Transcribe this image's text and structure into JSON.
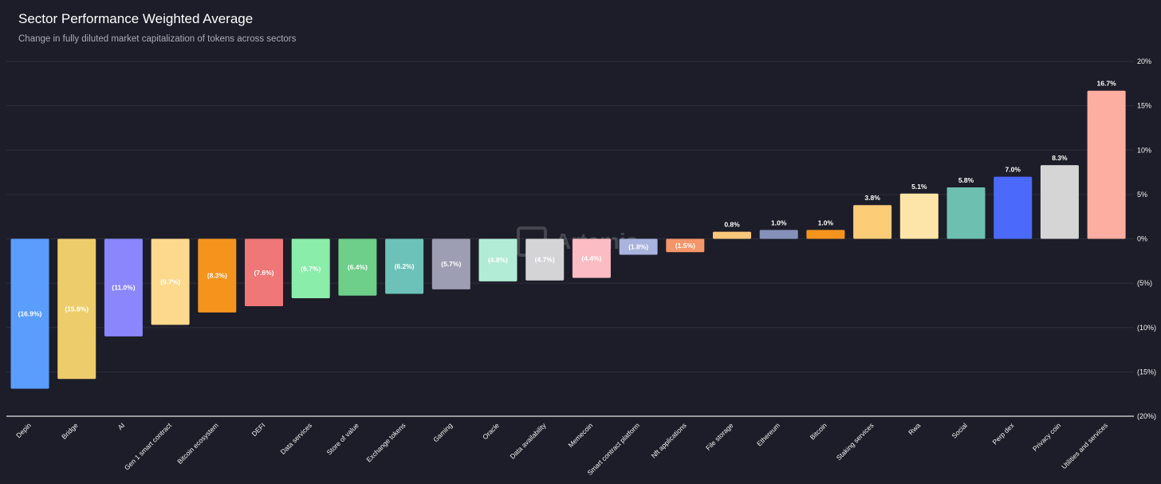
{
  "header": {
    "title": "Sector Performance Weighted Average",
    "subtitle": "Change in fully diluted market capitalization of tokens across sectors"
  },
  "watermark": {
    "text": "Artemis"
  },
  "chart_data": {
    "type": "bar",
    "title": "Sector Performance Weighted Average",
    "subtitle": "Change in fully diluted market capitalization of tokens across sectors",
    "xlabel": "",
    "ylabel": "",
    "ylim": [
      -20,
      20
    ],
    "yticks": [
      20,
      15,
      10,
      5,
      0,
      -5,
      -10,
      -15,
      -20
    ],
    "ytick_labels": [
      "20%",
      "15%",
      "10%",
      "5%",
      "0%",
      "(5%)",
      "(10%)",
      "(15%)",
      "(20%)"
    ],
    "y_axis_position": "right",
    "grid": true,
    "categories": [
      "Depin",
      "Bridge",
      "AI",
      "Gen 1 smart contract",
      "Bitcoin ecosystem",
      "DEFI",
      "Data services",
      "Store of value",
      "Exchange tokens",
      "Gaming",
      "Oracle",
      "Data availability",
      "Memecoin",
      "Smart contract platform",
      "Nft applications",
      "File storage",
      "Ethereum",
      "Bitcoin",
      "Staking services",
      "Rwa",
      "Social",
      "Perp dex",
      "Privacy coin",
      "Utilities and services"
    ],
    "values": [
      -16.9,
      -15.8,
      -11.0,
      -9.7,
      -8.3,
      -7.6,
      -6.7,
      -6.4,
      -6.2,
      -5.7,
      -4.8,
      -4.7,
      -4.4,
      -1.8,
      -1.5,
      0.8,
      1.0,
      1.0,
      3.8,
      5.1,
      5.8,
      7.0,
      8.3,
      16.7
    ],
    "labels": [
      "(16.9%)",
      "(15.8%)",
      "(11.0%)",
      "(9.7%)",
      "(8.3%)",
      "(7.6%)",
      "(6.7%)",
      "(6.4%)",
      "(6.2%)",
      "(5.7%)",
      "(4.8%)",
      "(4.7%)",
      "(4.4%)",
      "(1.8%)",
      "(1.5%)",
      "0.8%",
      "1.0%",
      "1.0%",
      "3.8%",
      "5.1%",
      "5.8%",
      "7.0%",
      "8.3%",
      "16.7%"
    ],
    "colors": [
      "#5a9dfd",
      "#edcd6b",
      "#8b86fb",
      "#fcd98c",
      "#f5941d",
      "#ef7777",
      "#8aedaa",
      "#6dcf89",
      "#6cc2b8",
      "#9d9db3",
      "#b2ecd6",
      "#d4d4d6",
      "#fcbcc4",
      "#a9b3de",
      "#f5966a",
      "#fbc77a",
      "#8590ba",
      "#f5941d",
      "#fdcc77",
      "#fde4a8",
      "#6dc0b0",
      "#4b69fb",
      "#d5d5d5",
      "#feaea0"
    ]
  }
}
